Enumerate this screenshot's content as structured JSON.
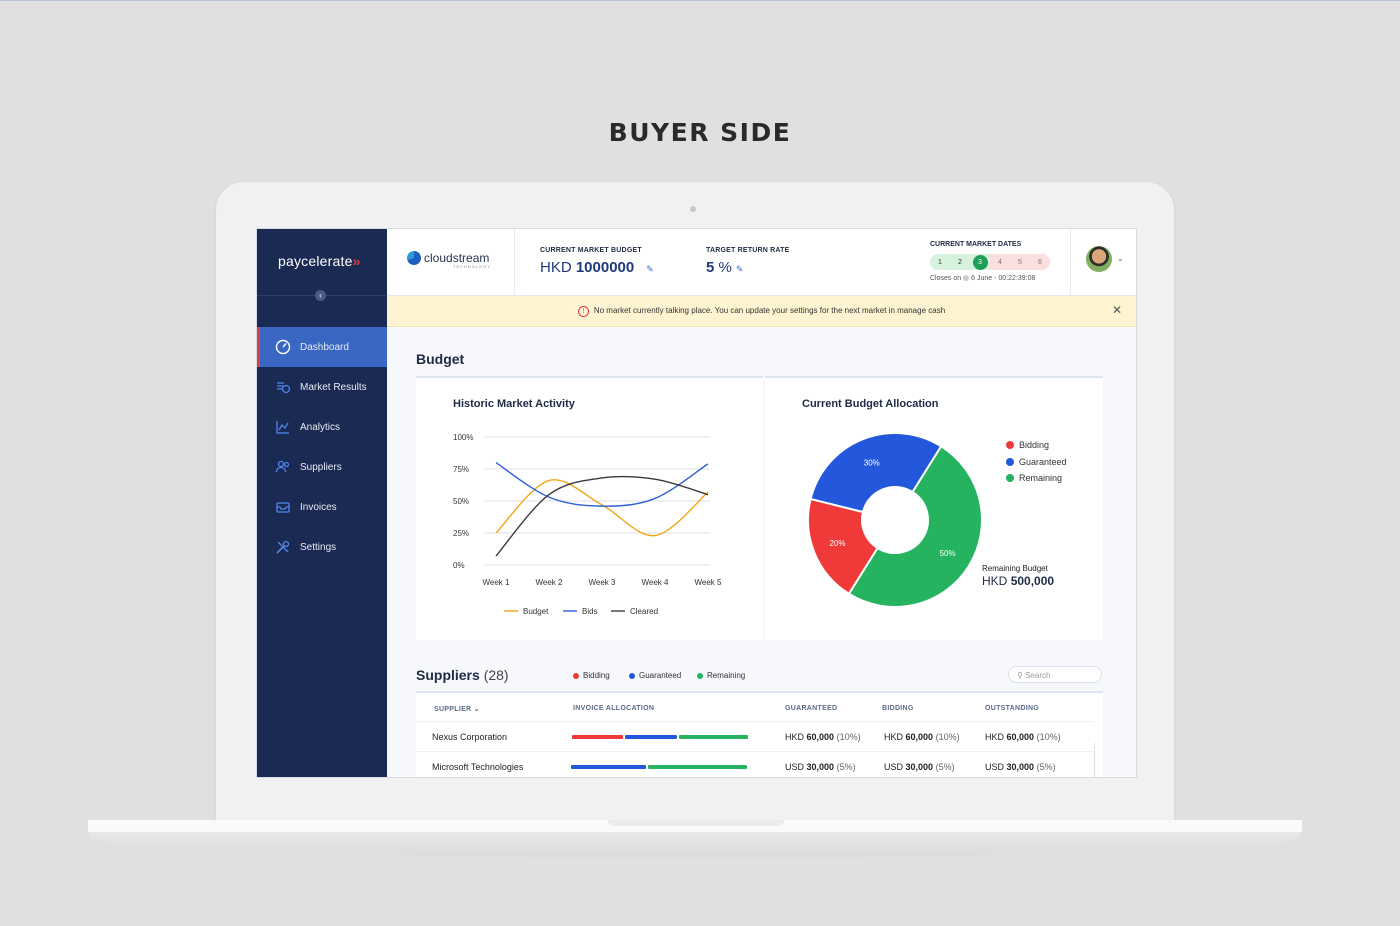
{
  "page": {
    "heading": "BUYER SIDE"
  },
  "sidebar": {
    "logo": "paycelerate",
    "logo_mark": "»",
    "collapse_icon": "‹",
    "items": [
      {
        "label": "Dashboard",
        "icon": "dashboard-icon",
        "active": true
      },
      {
        "label": "Market Results",
        "icon": "market-results-icon"
      },
      {
        "label": "Analytics",
        "icon": "analytics-icon"
      },
      {
        "label": "Suppliers",
        "icon": "suppliers-icon"
      },
      {
        "label": "Invoices",
        "icon": "invoices-icon"
      },
      {
        "label": "Settings",
        "icon": "settings-icon"
      }
    ]
  },
  "header": {
    "company": "cloudstream",
    "company_sub": "TECHNOLOGY",
    "budget_label": "CURRENT MARKET BUDGET",
    "budget_currency": "HKD",
    "budget_value": "1000000",
    "return_label": "TARGET RETURN RATE",
    "return_value": "5",
    "return_unit": "%",
    "dates_label": "CURRENT MARKET DATES",
    "dates": [
      "1",
      "2",
      "3",
      "4",
      "5",
      "6"
    ],
    "current_date_index": 3,
    "closes_prefix": "Closes on",
    "closes_value": "6 June - 00:22:39:08"
  },
  "banner": {
    "text": "No market currently talking place. You can update your settings for the next market in manage cash",
    "close": "✕"
  },
  "budget": {
    "title": "Budget",
    "history_title": "Historic Market Activity",
    "allocation_title": "Current Budget Allocation",
    "remaining_label": "Remaining Budget",
    "remaining_currency": "HKD",
    "remaining_value": "500,000"
  },
  "chart_data": [
    {
      "type": "line",
      "title": "Historic Market Activity",
      "x": [
        "Week 1",
        "Week 2",
        "Week 3",
        "Week 4",
        "Week 5"
      ],
      "ylim": [
        0,
        100
      ],
      "yticks": [
        "0%",
        "25%",
        "50%",
        "75%",
        "100%"
      ],
      "grid": true,
      "legend": "bottom",
      "series": [
        {
          "name": "Budget",
          "color": "#f2a516",
          "values": [
            25,
            66,
            47,
            23,
            57
          ]
        },
        {
          "name": "Bids",
          "color": "#2d5fd6",
          "values": [
            80,
            53,
            46,
            52,
            79
          ]
        },
        {
          "name": "Cleared",
          "color": "#3a3a3a",
          "values": [
            7,
            55,
            68,
            67,
            55
          ]
        }
      ]
    },
    {
      "type": "pie",
      "title": "Current Budget Allocation",
      "legend": "top-right",
      "slices": [
        {
          "name": "Bidding",
          "value": 20,
          "label": "20%",
          "color": "#f03a3a"
        },
        {
          "name": "Guaranteed",
          "value": 30,
          "label": "30%",
          "color": "#2458dc"
        },
        {
          "name": "Remaining",
          "value": 50,
          "label": "50%",
          "color": "#26b35f"
        }
      ]
    }
  ],
  "suppliers": {
    "title": "Suppliers",
    "count": "(28)",
    "legend": [
      {
        "label": "Bidding",
        "color": "#f03a3a"
      },
      {
        "label": "Guaranteed",
        "color": "#2458dc"
      },
      {
        "label": "Remaining",
        "color": "#26b35f"
      }
    ],
    "search_placeholder": "Search",
    "columns": [
      "SUPPLIER",
      "INVOICE ALLOCATION",
      "GUARANTEED",
      "BIDDING",
      "OUTSTANDING"
    ],
    "rows": [
      {
        "name": "Nexus Corporation",
        "allocation": [
          {
            "color": "#f03a3a",
            "share": 0.3
          },
          {
            "color": "#2458dc",
            "share": 0.3
          },
          {
            "color": "#26b35f",
            "share": 0.4
          }
        ],
        "guaranteed": {
          "cur": "HKD",
          "amt": "60,000",
          "pct": "(10%)"
        },
        "bidding": {
          "cur": "HKD",
          "amt": "60,000",
          "pct": "(10%)"
        },
        "outstanding": {
          "cur": "HKD",
          "amt": "60,000",
          "pct": "(10%)"
        }
      },
      {
        "name": "Microsoft Technologies",
        "allocation": [
          {
            "color": "#2458dc",
            "share": 0.43
          },
          {
            "color": "#26b35f",
            "share": 0.57
          }
        ],
        "guaranteed": {
          "cur": "USD",
          "amt": "30,000",
          "pct": "(5%)"
        },
        "bidding": {
          "cur": "USD",
          "amt": "30,000",
          "pct": "(5%)"
        },
        "outstanding": {
          "cur": "USD",
          "amt": "30,000",
          "pct": "(5%)"
        }
      }
    ]
  }
}
